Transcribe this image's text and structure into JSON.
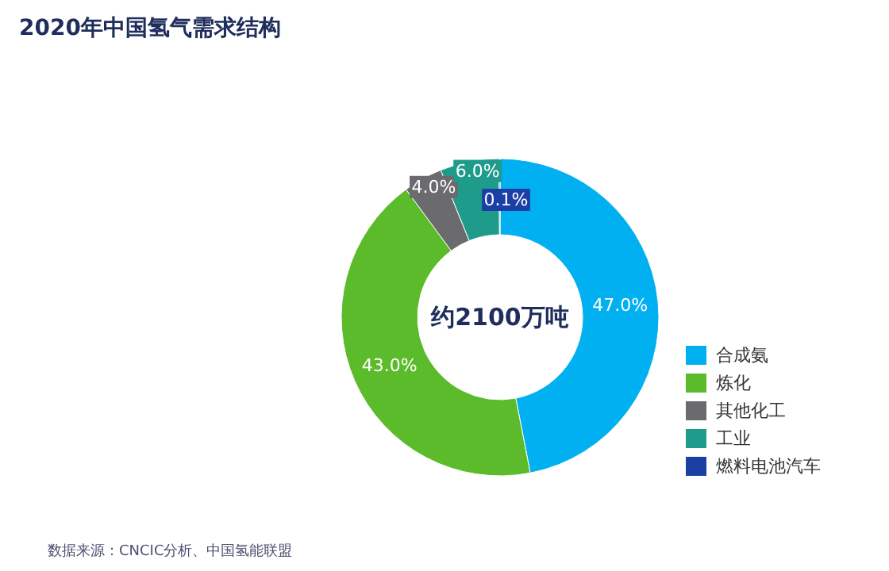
{
  "chart_data": {
    "type": "donut",
    "title": "2020年中国氢气需求结构",
    "categories": [
      "合成氨",
      "炼化",
      "其他化工",
      "工业",
      "燃料电池汽车"
    ],
    "values": [
      47.0,
      43.0,
      4.0,
      6.0,
      0.1
    ],
    "value_labels": [
      "47.0%",
      "43.0%",
      "4.0%",
      "6.0%",
      "0.1%"
    ],
    "colors": [
      "#00b0f0",
      "#5cbb2a",
      "#6b6b6e",
      "#1f9b8c",
      "#1c3fa6"
    ],
    "legend": "right",
    "annotations": [
      "约2100万吨",
      "数据来源：CNCIC分析、中国氢能联盟"
    ]
  }
}
